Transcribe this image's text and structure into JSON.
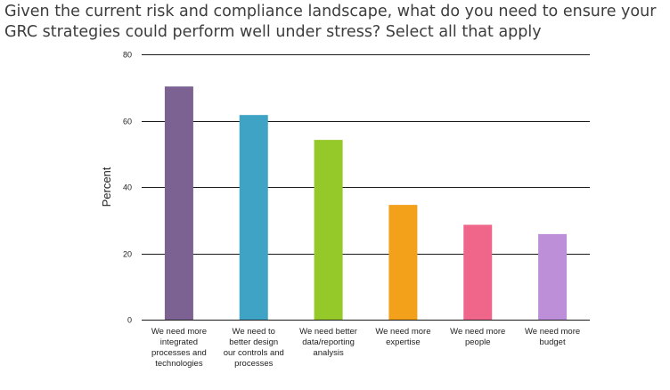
{
  "title_lines": [
    "Given the current risk and compliance landscape, what do you need to ensure your",
    "GRC strategies could perform well under stress? Select all that apply"
  ],
  "chart_data": {
    "type": "bar",
    "categories": [
      "We need more integrated processes and technologies",
      "We need to better design our controls and processes",
      "We need better data/reporting analysis",
      "We need more expertise",
      "We need more people",
      "We need more budget"
    ],
    "category_label_lines": [
      [
        "We need more",
        "integrated",
        "processes and",
        "technologies"
      ],
      [
        "We need to",
        "better design",
        "our controls and",
        "processes"
      ],
      [
        "We need better",
        "data/reporting",
        "analysis"
      ],
      [
        "We need more",
        "expertise"
      ],
      [
        "We need more",
        "people"
      ],
      [
        "We need more",
        "budget"
      ]
    ],
    "values": [
      70.3,
      61.7,
      54.2,
      34.6,
      28.6,
      25.8
    ],
    "colors": [
      "#7b6293",
      "#3ea3c5",
      "#95c829",
      "#f3a01b",
      "#f0668a",
      "#bc8fd8"
    ],
    "ylabel": "Percent",
    "ylim": [
      0,
      80
    ],
    "yticks": [
      0,
      20,
      40,
      60,
      80
    ],
    "grid": true
  }
}
